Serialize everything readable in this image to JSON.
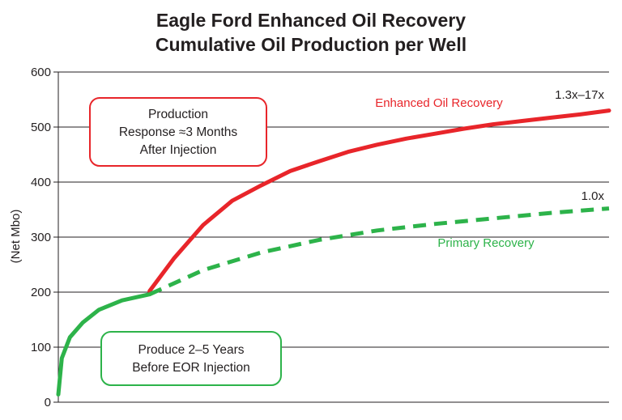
{
  "chart_data": {
    "type": "line",
    "title": "Eagle Ford Enhanced Oil Recovery",
    "subtitle": "Cumulative Oil Production per Well",
    "xlabel": "",
    "ylabel": "(Net Mbo)",
    "ylim": [
      0,
      600
    ],
    "yticks": [
      "0",
      "100",
      "200",
      "300",
      "400",
      "500",
      "600"
    ],
    "grid": "horizontal",
    "colors": {
      "eor": "#e8252a",
      "primary": "#2db34a",
      "text": "#231f20"
    },
    "series": [
      {
        "name": "Primary Recovery",
        "style": "solid",
        "x": [
          0,
          0.12,
          0.4,
          0.85,
          1.4,
          2.2,
          3.15
        ],
        "values": [
          14,
          80,
          118,
          145,
          168,
          185,
          196
        ]
      },
      {
        "name": "Enhanced Oil Recovery",
        "style": "solid",
        "x": [
          3.15,
          4.0,
          5.0,
          6.0,
          7.0,
          8.0,
          9.0,
          10.0,
          11.0,
          12.0,
          13.0,
          14.0,
          15.0,
          16.0,
          17.0,
          18.0,
          19.0
        ],
        "values": [
          202,
          262,
          322,
          366,
          394,
          420,
          438,
          455,
          468,
          479,
          488,
          497,
          505,
          511,
          517,
          523,
          530
        ]
      },
      {
        "name": "Primary Recovery",
        "style": "dashed",
        "x": [
          3.15,
          5.0,
          7.0,
          9.0,
          11.0,
          13.0,
          15.0,
          17.0,
          19.0
        ],
        "values": [
          196,
          240,
          272,
          295,
          312,
          324,
          334,
          344,
          352
        ]
      }
    ],
    "annotations": {
      "eor_label": "Enhanced Oil Recovery",
      "eor_multiplier": "1.3x–17x",
      "primary_label": "Primary Recovery",
      "primary_multiplier": "1.0x",
      "box_eor": [
        "Production",
        "Response ≈3 Months",
        "After Injection"
      ],
      "box_primary": [
        "Produce 2–5 Years",
        "Before EOR Injection"
      ]
    }
  }
}
